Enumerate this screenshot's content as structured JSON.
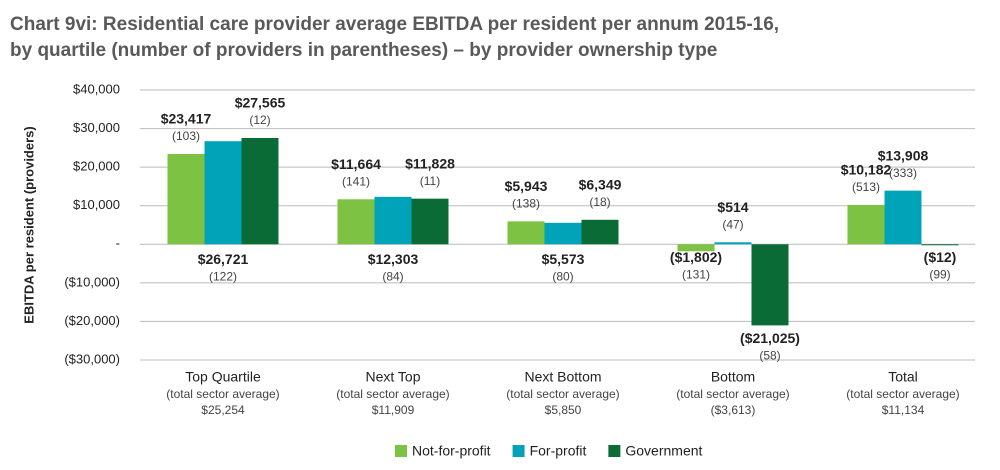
{
  "chart_data": {
    "type": "bar",
    "title_lines": [
      "Chart 9vi: Residential care provider average EBITDA per resident per annum 2015-16,",
      "by quartile (number of providers in parentheses) – by provider ownership type"
    ],
    "y_label": "EBITDA per resident (providers)",
    "categories": [
      "Top Quartile",
      "Next Top",
      "Next Bottom",
      "Bottom",
      "Total"
    ],
    "category_notes": [
      "(total sector average)",
      "(total sector average)",
      "(total sector average)",
      "(total sector average)",
      "(total sector average)"
    ],
    "category_averages": [
      "$25,254",
      "$11,909",
      "$5,850",
      "($3,613)",
      "$11,134"
    ],
    "series": [
      {
        "name": "Not-for-profit",
        "color": "#7dc242",
        "values": [
          23417,
          11664,
          5943,
          -1802,
          10182
        ],
        "value_labels": [
          "$23,417",
          "$11,664",
          "$5,943",
          "($1,802)",
          "$10,182"
        ],
        "count_labels": [
          "(103)",
          "(141)",
          "(138)",
          "(131)",
          "(513)"
        ]
      },
      {
        "name": "For-profit",
        "color": "#00a3b8",
        "values": [
          26721,
          12303,
          5573,
          514,
          13908
        ],
        "value_labels": [
          "$26,721",
          "$12,303",
          "$5,573",
          "$514",
          "$13,908"
        ],
        "count_labels": [
          "(122)",
          "(84)",
          "(80)",
          "(47)",
          "(333)"
        ]
      },
      {
        "name": "Government",
        "color": "#0a6b36",
        "values": [
          27565,
          11828,
          6349,
          -21025,
          -12
        ],
        "value_labels": [
          "$27,565",
          "$11,828",
          "$6,349",
          "($21,025)",
          "($12)"
        ],
        "count_labels": [
          "(12)",
          "(11)",
          "(18)",
          "(58)",
          "(99)"
        ]
      }
    ],
    "ylim": [
      -30000,
      40000
    ],
    "yticks": [
      {
        "value": -30000,
        "label": "($30,000)"
      },
      {
        "value": -20000,
        "label": "($20,000)"
      },
      {
        "value": -10000,
        "label": "($10,000)"
      },
      {
        "value": 0,
        "label": "-"
      },
      {
        "value": 10000,
        "label": "$10,000"
      },
      {
        "value": 20000,
        "label": "$20,000"
      },
      {
        "value": 30000,
        "label": "$30,000"
      },
      {
        "value": 40000,
        "label": "$40,000"
      }
    ],
    "grid": true,
    "legend": "bottom"
  }
}
